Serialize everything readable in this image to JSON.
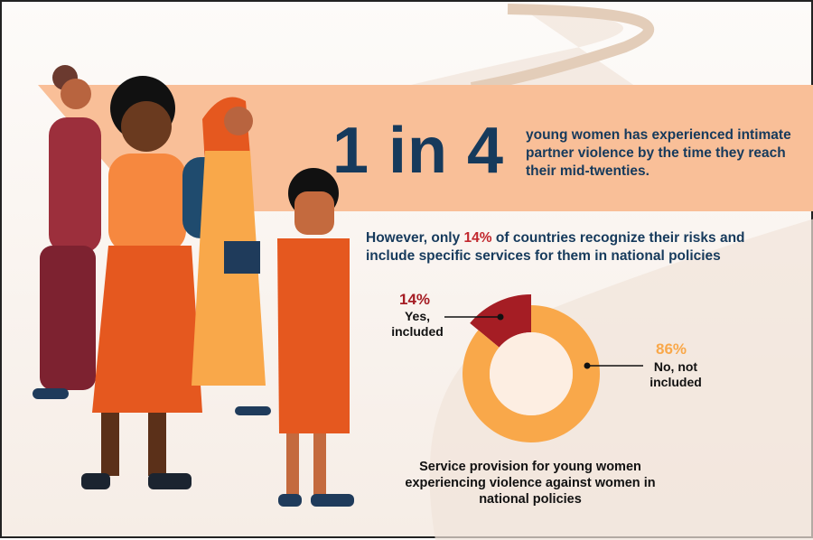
{
  "headline": {
    "stat": "1 in 4",
    "text": "young women has experienced intimate partner violence by the time they reach their mid-twenties."
  },
  "subhead": {
    "before": "However, only ",
    "highlight": "14%",
    "after": " of countries recognize their risks and include specific services for them in national policies"
  },
  "chart_data": {
    "type": "pie",
    "style": "donut",
    "title": "Service provision for young women experiencing violence against women in national policies",
    "slices": [
      {
        "label": "Yes, included",
        "value": 14,
        "value_label": "14%",
        "color": "#a51d24"
      },
      {
        "label": "No, not included",
        "value": 86,
        "value_label": "86%",
        "color": "#f9a84a"
      }
    ]
  },
  "colors": {
    "navy": "#163a5c",
    "peach_band": "#f9bf98",
    "accent_red": "#c1272d"
  }
}
